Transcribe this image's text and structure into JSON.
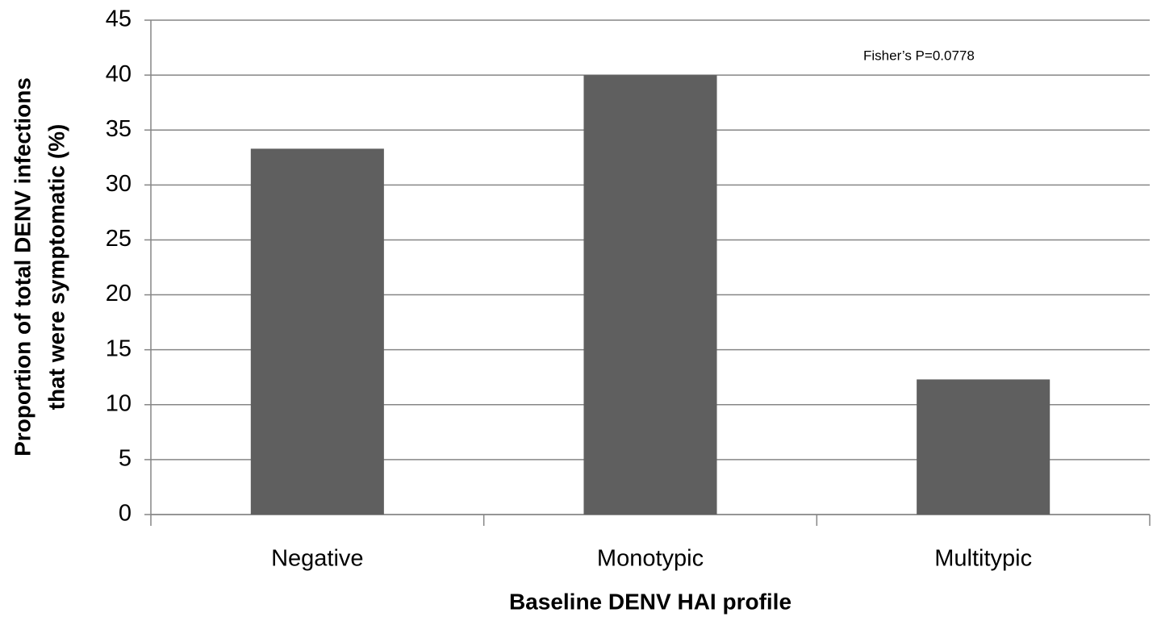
{
  "chart_data": {
    "type": "bar",
    "ylabel": [
      "Proportion of total DENV infections",
      "that were symptomatic (%)"
    ],
    "xlabel": "Baseline DENV HAI profile",
    "annotation": "Fisher’s P=0.0778",
    "categories": [
      "Negative",
      "Monotypic",
      "Multitypic"
    ],
    "values": [
      33.3,
      40,
      12.3
    ],
    "color": "#5f5f5f",
    "ylim": [
      0,
      45
    ],
    "yticks": [
      0,
      5,
      10,
      15,
      20,
      25,
      30,
      35,
      40,
      45
    ],
    "grid": true
  }
}
